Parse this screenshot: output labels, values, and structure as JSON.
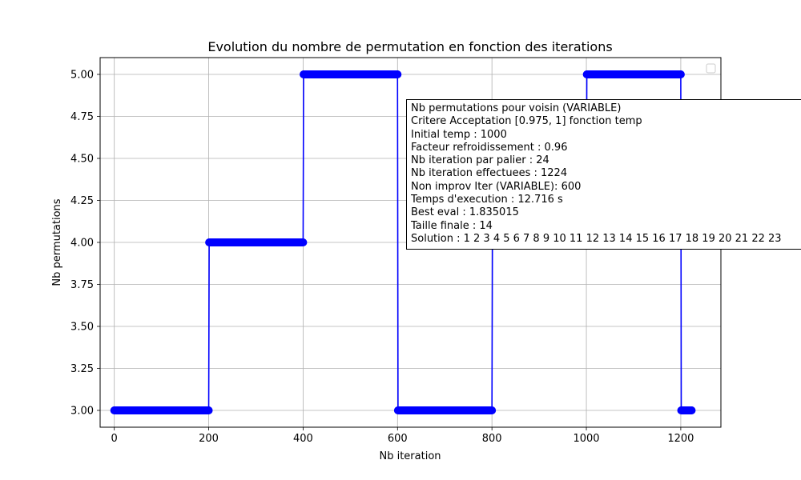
{
  "chart_data": {
    "type": "line",
    "title": "Evolution du nombre de permutation en fonction des iterations",
    "xlabel": "Nb iteration",
    "ylabel": "Nb permutations",
    "xlim": [
      -30,
      1285
    ],
    "ylim": [
      2.9,
      5.1
    ],
    "xticks": [
      0,
      200,
      400,
      600,
      800,
      1000,
      1200
    ],
    "xtick_labels": [
      "0",
      "200",
      "400",
      "600",
      "800",
      "1000",
      "1200"
    ],
    "yticks": [
      3.0,
      3.25,
      3.5,
      3.75,
      4.0,
      4.25,
      4.5,
      4.75,
      5.0
    ],
    "ytick_labels": [
      "3.00",
      "3.25",
      "3.50",
      "3.75",
      "4.00",
      "4.25",
      "4.50",
      "4.75",
      "5.00"
    ],
    "grid": true,
    "legend": "top-right",
    "series": [
      {
        "color": "#0000ff",
        "marker": "circle",
        "segments": [
          {
            "x_start": 0,
            "x_end": 200,
            "y": 3
          },
          {
            "x_start": 201,
            "x_end": 400,
            "y": 4
          },
          {
            "x_start": 401,
            "x_end": 600,
            "y": 5
          },
          {
            "x_start": 601,
            "x_end": 800,
            "y": 3
          },
          {
            "x_start": 801,
            "x_end": 1000,
            "y": 4
          },
          {
            "x_start": 1001,
            "x_end": 1200,
            "y": 5
          },
          {
            "x_start": 1201,
            "x_end": 1223,
            "y": 3
          }
        ]
      }
    ],
    "annotation": [
      "Nb permutations pour voisin (VARIABLE)",
      "Critere Acceptation [0.975, 1] fonction temp",
      "Initial temp : 1000",
      "Facteur refroidissement : 0.96",
      "Nb iteration par palier : 24",
      "Nb iteration effectuees : 1224",
      "Non improv Iter (VARIABLE): 600",
      "Temps d'execution : 12.716 s",
      "Best eval : 1.835015",
      "Taille finale : 14",
      "Solution : 1 2 3 4 5 6 7 8 9 10 11 12 13 14 15 16 17 18 19 20 21 22 23"
    ]
  }
}
